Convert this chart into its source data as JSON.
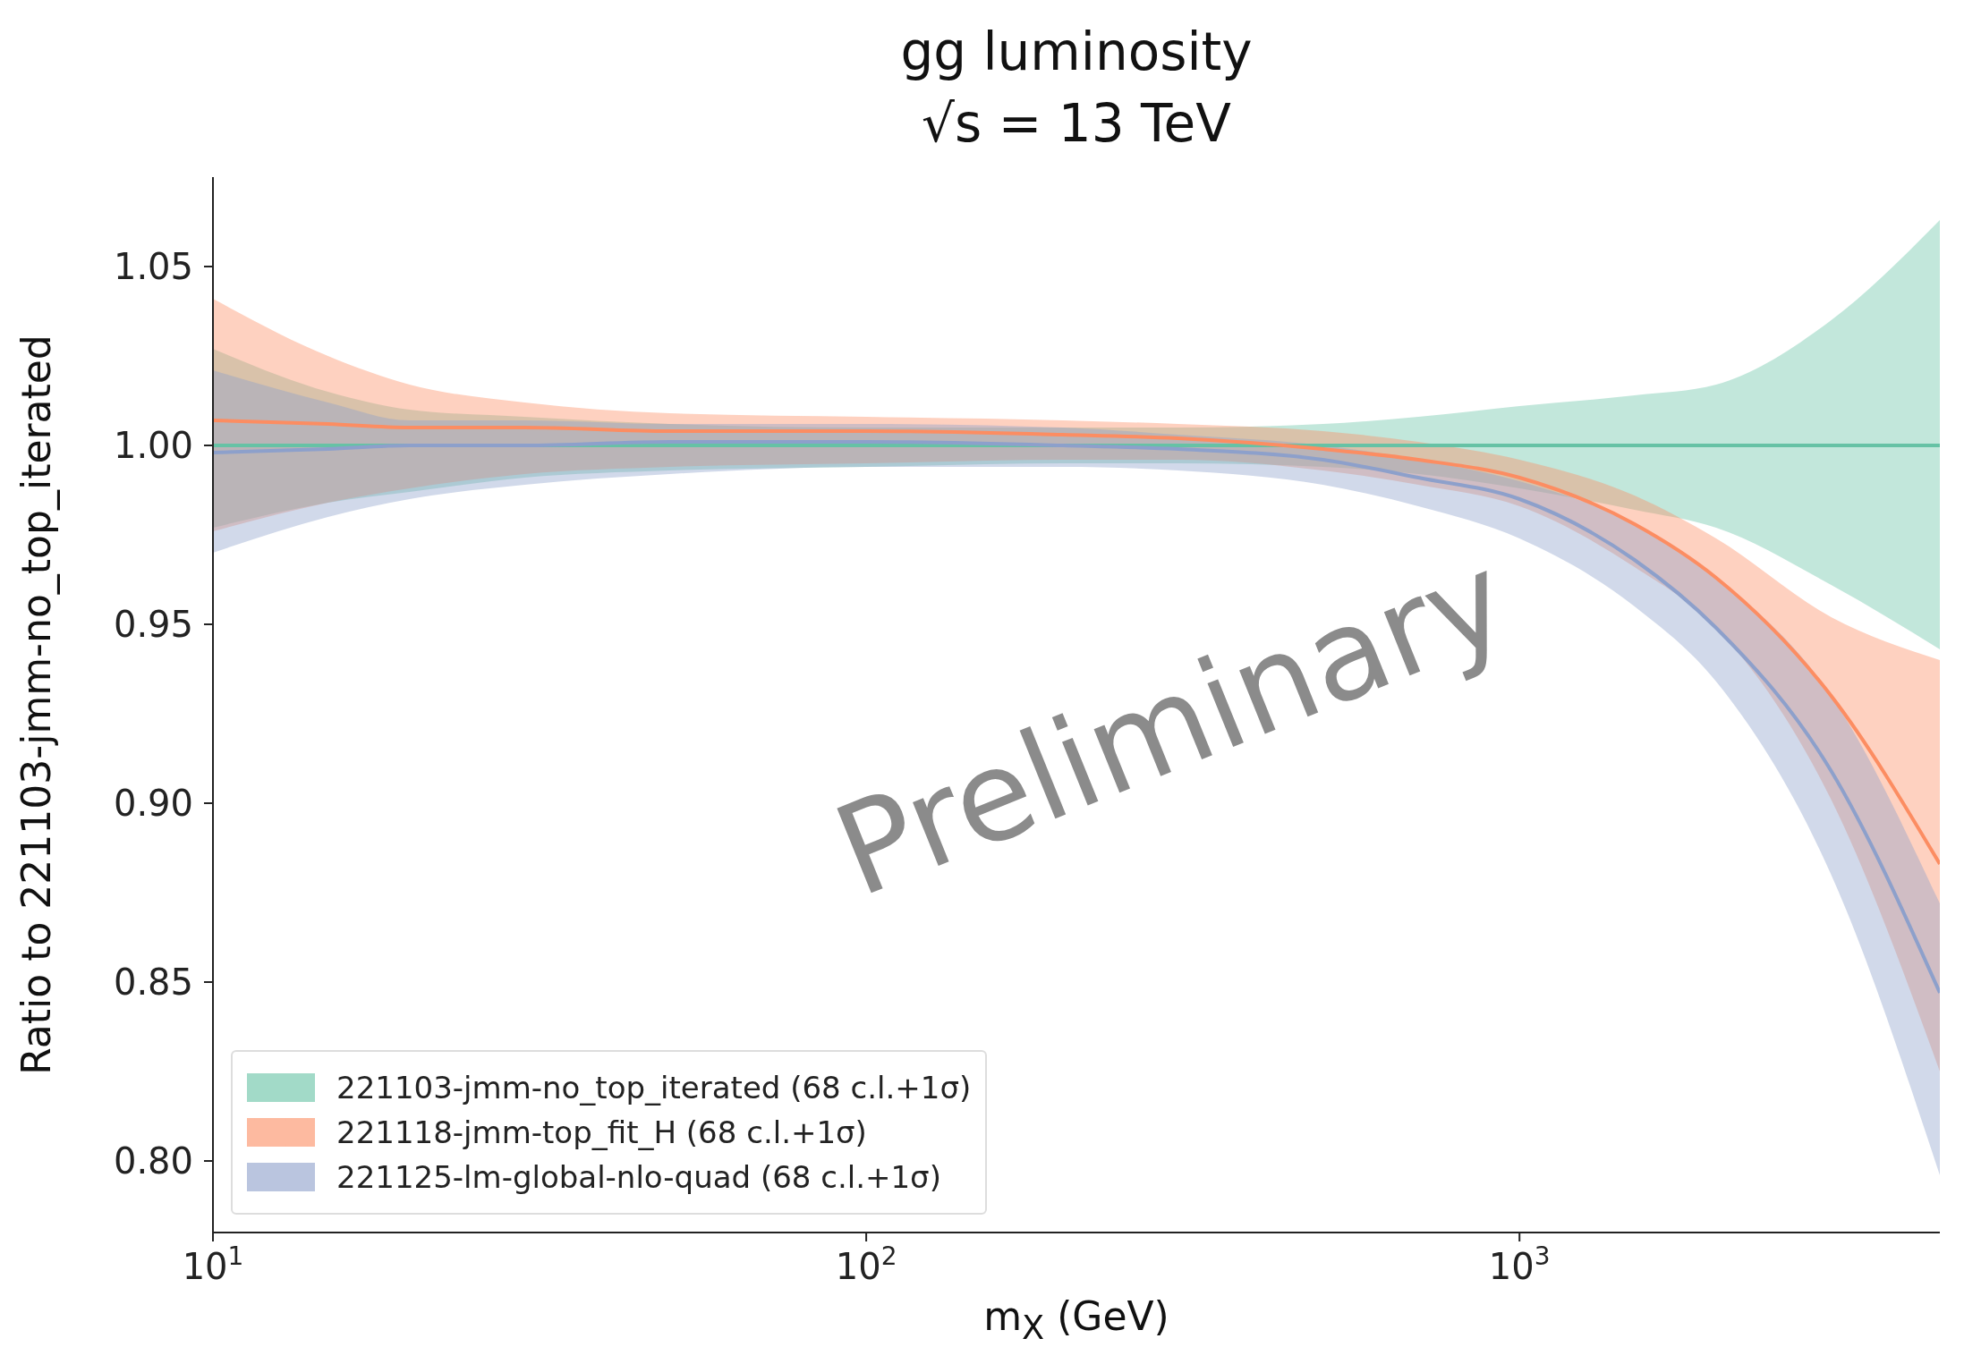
{
  "chart_data": {
    "type": "line",
    "title": "gg luminosity",
    "subtitle": "√s = 13 TeV",
    "xlabel": "m$_{X}$ (GeV)",
    "ylabel": "Ratio to 221103-jmm-no_top_iterated",
    "x": [
      10,
      15,
      20,
      30,
      50,
      100,
      200,
      300,
      500,
      700,
      1000,
      1500,
      2000,
      3000,
      4400
    ],
    "series": [
      {
        "name": "221103-jmm-no_top_iterated (68 c.l.+1σ)",
        "color": "#66c2a5",
        "values": [
          1.0,
          1.0,
          1.0,
          1.0,
          1.0,
          1.0,
          1.0,
          1.0,
          1.0,
          1.0,
          1.0,
          1.0,
          1.0,
          1.0,
          1.0
        ],
        "lower": [
          0.977,
          0.984,
          0.987,
          0.991,
          0.993,
          0.994,
          0.995,
          0.995,
          0.994,
          0.992,
          0.988,
          0.982,
          0.977,
          0.961,
          0.943
        ],
        "upper": [
          1.027,
          1.015,
          1.01,
          1.008,
          1.006,
          1.005,
          1.005,
          1.005,
          1.006,
          1.008,
          1.011,
          1.014,
          1.017,
          1.035,
          1.063
        ]
      },
      {
        "name": "221118-jmm-top_fit_H (68 c.l.+1σ)",
        "color": "#fc8d62",
        "values": [
          1.007,
          1.006,
          1.005,
          1.005,
          1.004,
          1.004,
          1.003,
          1.002,
          0.999,
          0.996,
          0.991,
          0.978,
          0.963,
          0.93,
          0.883
        ],
        "lower": [
          0.976,
          0.984,
          0.988,
          0.992,
          0.994,
          0.995,
          0.996,
          0.996,
          0.993,
          0.989,
          0.983,
          0.966,
          0.949,
          0.901,
          0.825
        ],
        "upper": [
          1.041,
          1.025,
          1.017,
          1.012,
          1.009,
          1.008,
          1.007,
          1.006,
          1.004,
          1.001,
          0.996,
          0.986,
          0.974,
          0.952,
          0.94
        ]
      },
      {
        "name": "221125-lm-global-nlo-quad (68 c.l.+1σ)",
        "color": "#8da0cb",
        "values": [
          0.998,
          0.999,
          1.0,
          1.0,
          1.001,
          1.001,
          1.0,
          0.999,
          0.996,
          0.991,
          0.985,
          0.968,
          0.949,
          0.909,
          0.847
        ],
        "lower": [
          0.97,
          0.98,
          0.985,
          0.989,
          0.992,
          0.994,
          0.994,
          0.993,
          0.989,
          0.983,
          0.974,
          0.955,
          0.934,
          0.88,
          0.796
        ],
        "upper": [
          1.021,
          1.012,
          1.007,
          1.007,
          1.006,
          1.006,
          1.005,
          1.003,
          1.0,
          0.996,
          0.99,
          0.978,
          0.963,
          0.93,
          0.872
        ]
      }
    ],
    "log": "x",
    "xlim": [
      10,
      4400
    ],
    "xticks": [
      {
        "value": 10,
        "label": "10$^{1}$"
      },
      {
        "value": 100,
        "label": "10$^{2}$"
      },
      {
        "value": 1000,
        "label": "10$^{3}$"
      }
    ],
    "ylim": [
      0.78,
      1.075
    ],
    "yticks": [
      {
        "value": 0.8,
        "label": "0.80"
      },
      {
        "value": 0.85,
        "label": "0.85"
      },
      {
        "value": 0.9,
        "label": "0.90"
      },
      {
        "value": 0.95,
        "label": "0.95"
      },
      {
        "value": 1.0,
        "label": "1.00"
      },
      {
        "value": 1.05,
        "label": "1.05"
      }
    ],
    "grid": false,
    "legend": "bottom left",
    "line_style": "solid",
    "marker": "none",
    "annotations": [
      "Preliminary"
    ]
  }
}
